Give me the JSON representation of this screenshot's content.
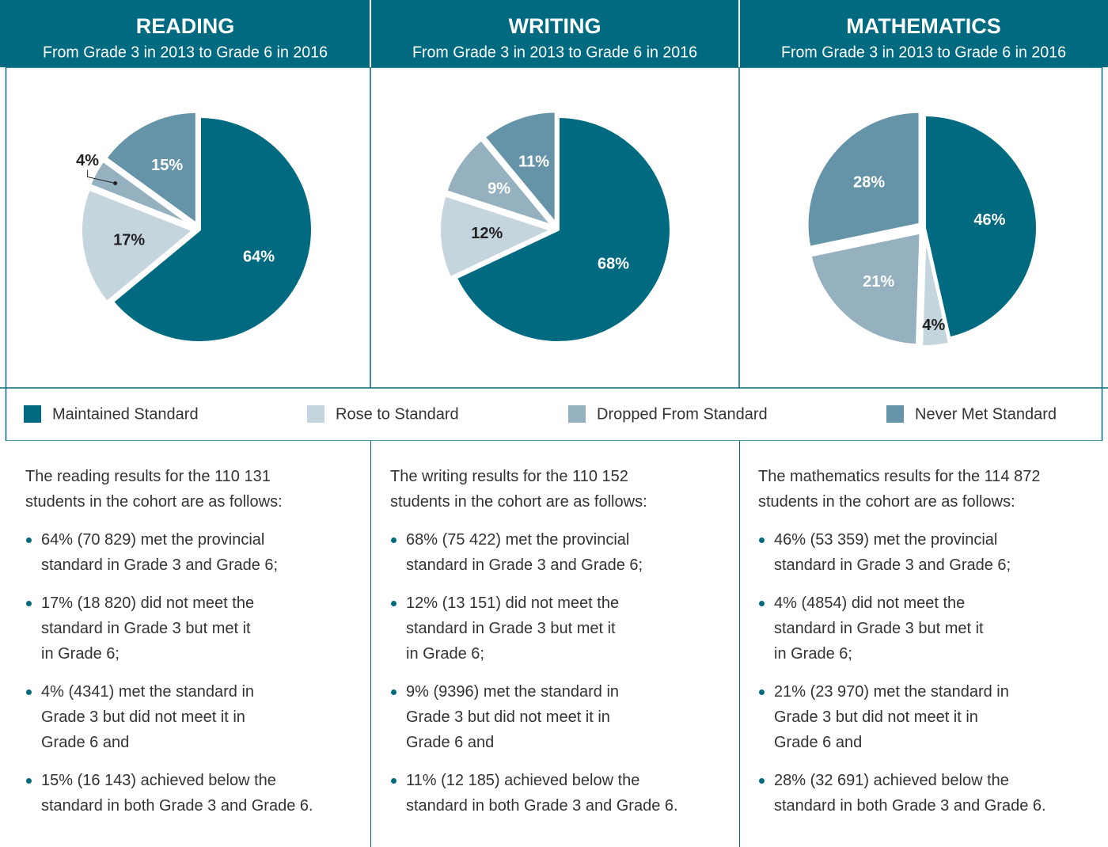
{
  "chart_data": [
    {
      "type": "pie",
      "title": "READING",
      "subtitle": "From Grade 3 in 2013 to Grade 6 in 2016",
      "values": [
        64,
        17,
        4,
        15
      ],
      "value_labels": [
        "64%",
        "17%",
        "4%",
        "15%"
      ]
    },
    {
      "type": "pie",
      "title": "WRITING",
      "subtitle": "From Grade 3 in 2013 to Grade 6 in 2016",
      "values": [
        68,
        12,
        9,
        11
      ],
      "value_labels": [
        "68%",
        "12%",
        "9%",
        "11%"
      ]
    },
    {
      "type": "pie",
      "title": "MATHEMATICS",
      "subtitle": "From Grade 3 in 2013 to Grade 6 in 2016",
      "values": [
        46,
        4,
        21,
        28
      ],
      "value_labels": [
        "46%",
        "4%",
        "21%",
        "28%"
      ]
    }
  ],
  "legend": {
    "categories": [
      "Maintained Standard",
      "Rose to Standard",
      "Dropped From Standard",
      "Never Met Standard"
    ],
    "colors": [
      "#006a80",
      "#c5d5dd",
      "#95b0bf",
      "#6594a8"
    ]
  },
  "descriptions": [
    {
      "intro": [
        "The reading results for the 110 131",
        "students in the cohort are as follows:"
      ],
      "bullets": [
        [
          "64% (70 829) met the provincial",
          "standard in Grade 3 and Grade 6;"
        ],
        [
          "17% (18 820) did not meet the",
          "standard in Grade 3 but met it",
          "in Grade 6;"
        ],
        [
          "4% (4341) met the standard in",
          "Grade 3 but did not meet it in",
          "Grade 6 and"
        ],
        [
          "15% (16 143) achieved below the",
          "standard in both Grade 3 and Grade 6."
        ]
      ]
    },
    {
      "intro": [
        "The writing results for the 110 152",
        "students in the cohort are as follows:"
      ],
      "bullets": [
        [
          "68% (75 422) met the provincial",
          "standard in Grade 3 and Grade 6;"
        ],
        [
          "12% (13 151) did not meet the",
          "standard in Grade 3 but met it",
          "in Grade 6;"
        ],
        [
          "9% (9396) met the standard in",
          "Grade 3 but did not meet it in",
          "Grade 6 and"
        ],
        [
          "11% (12 185) achieved below the",
          "standard in both Grade 3 and Grade 6."
        ]
      ]
    },
    {
      "intro": [
        "The mathematics results for the 114 872",
        "students in the cohort are as follows:"
      ],
      "bullets": [
        [
          "46% (53 359) met the provincial",
          "standard in Grade 3 and Grade 6;"
        ],
        [
          "4% (4854) did not meet the",
          "standard in Grade 3 but met it",
          "in Grade 6;"
        ],
        [
          "21% (23 970) met the standard in",
          "Grade 3 but did not meet it in",
          "Grade 6 and"
        ],
        [
          "28% (32 691) achieved below the",
          "standard in both Grade 3 and Grade 6."
        ]
      ]
    }
  ]
}
